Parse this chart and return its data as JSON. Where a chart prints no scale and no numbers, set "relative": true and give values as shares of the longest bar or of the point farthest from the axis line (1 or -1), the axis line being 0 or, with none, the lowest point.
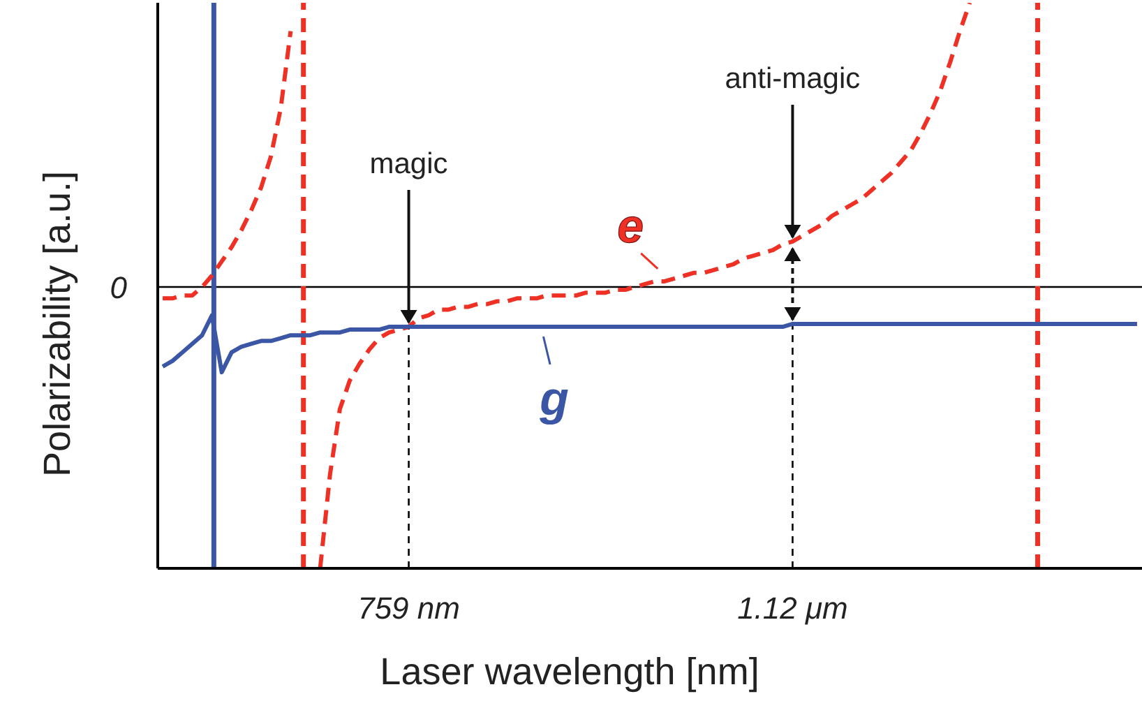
{
  "chart_data": {
    "type": "line",
    "relative": true,
    "xlabel": "Laser wavelength [nm]",
    "ylabel": "Polarizability  [a.u.]",
    "categories": [
      null,
      null,
      null,
      null,
      null,
      null,
      null,
      null,
      null,
      null,
      null,
      null,
      null,
      null,
      null,
      null,
      null,
      null,
      null,
      null,
      null,
      null,
      null,
      null,
      null,
      "759 nm",
      null,
      null,
      null,
      null,
      null,
      null,
      null,
      null,
      null,
      null,
      null,
      null,
      null,
      null,
      null,
      null,
      null,
      null,
      null,
      null,
      null,
      null,
      null,
      null,
      null,
      null,
      null,
      null,
      null,
      null,
      null,
      null,
      null,
      null,
      null,
      null,
      null,
      null,
      "1.12 μm",
      null,
      null,
      null,
      null,
      null,
      null,
      null,
      null,
      null,
      null,
      null,
      null,
      null,
      null,
      null,
      null,
      null,
      null,
      null,
      null,
      null,
      null,
      null,
      null,
      null,
      null,
      null,
      null,
      null,
      null,
      null,
      null,
      null,
      null,
      null
    ],
    "series": [
      {
        "name": "e",
        "color": "#ee3124",
        "line_style": "dashed",
        "values": [
          -0.04,
          -0.04,
          -0.03,
          -0.03,
          0,
          0.04,
          0.09,
          0.14,
          0.2,
          0.27,
          0.35,
          0.46,
          0.63,
          0.9,
          null,
          null,
          -0.99,
          -0.66,
          -0.43,
          -0.33,
          -0.27,
          -0.22,
          -0.18,
          -0.16,
          -0.15,
          -0.14,
          -0.11,
          -0.1,
          -0.08,
          -0.08,
          -0.07,
          -0.07,
          -0.06,
          -0.06,
          -0.05,
          -0.05,
          -0.04,
          -0.04,
          -0.04,
          -0.03,
          -0.03,
          -0.03,
          -0.03,
          -0.02,
          -0.02,
          -0.02,
          -0.01,
          -0.01,
          0,
          0.01,
          0.02,
          0.02,
          0.03,
          0.04,
          0.05,
          0.05,
          0.06,
          0.07,
          0.08,
          0.1,
          0.11,
          0.12,
          0.13,
          0.15,
          0.16,
          0.18,
          0.2,
          0.22,
          0.25,
          0.27,
          0.29,
          0.31,
          0.34,
          0.37,
          0.4,
          0.44,
          0.48,
          0.54,
          0.61,
          0.69,
          0.79,
          0.9,
          1,
          null,
          null,
          null,
          null,
          null,
          null,
          null,
          null,
          null,
          null,
          null,
          null,
          null,
          null,
          null,
          null,
          null
        ]
      },
      {
        "name": "g",
        "color": "#3a56a5",
        "line_style": "solid",
        "values": [
          -0.28,
          -0.26,
          -0.23,
          -0.2,
          -0.17,
          -0.1,
          -0.3,
          -0.23,
          -0.21,
          -0.2,
          -0.19,
          -0.19,
          -0.18,
          -0.17,
          -0.17,
          -0.17,
          -0.16,
          -0.16,
          -0.16,
          -0.15,
          -0.15,
          -0.15,
          -0.15,
          -0.14,
          -0.14,
          -0.14,
          -0.14,
          -0.14,
          -0.14,
          -0.14,
          -0.14,
          -0.14,
          -0.14,
          -0.14,
          -0.14,
          -0.14,
          -0.14,
          -0.14,
          -0.14,
          -0.14,
          -0.14,
          -0.14,
          -0.14,
          -0.14,
          -0.14,
          -0.14,
          -0.14,
          -0.14,
          -0.14,
          -0.14,
          -0.14,
          -0.14,
          -0.14,
          -0.14,
          -0.14,
          -0.14,
          -0.14,
          -0.14,
          -0.14,
          -0.14,
          -0.14,
          -0.14,
          -0.14,
          -0.14,
          -0.13,
          -0.13,
          -0.13,
          -0.13,
          -0.13,
          -0.13,
          -0.13,
          -0.13,
          -0.13,
          -0.13,
          -0.13,
          -0.13,
          -0.13,
          -0.13,
          -0.13,
          -0.13,
          -0.13,
          -0.13,
          -0.13,
          -0.13,
          -0.13,
          -0.13,
          -0.13,
          -0.13,
          -0.13,
          -0.13,
          -0.13,
          -0.13,
          -0.13,
          -0.13,
          -0.13,
          -0.13,
          -0.13,
          -0.13,
          -0.13,
          -0.13
        ]
      }
    ],
    "ref_lines": [
      {
        "axis": "y",
        "value": 0,
        "label": "0",
        "color": "#000000",
        "line_style": "solid"
      },
      {
        "axis": "x",
        "value": "759 nm",
        "label": null,
        "color": "#000000",
        "line_style": "dotted"
      },
      {
        "axis": "x",
        "value": "1.12 μm",
        "label": null,
        "color": "#000000",
        "line_style": "dotted"
      }
    ],
    "annotations": [
      {
        "text": "magic",
        "x": "759 nm",
        "y": -0.14
      },
      {
        "text": "anti-magic",
        "x": "1.12 μm",
        "y": 0.16
      }
    ],
    "marker": "none"
  }
}
